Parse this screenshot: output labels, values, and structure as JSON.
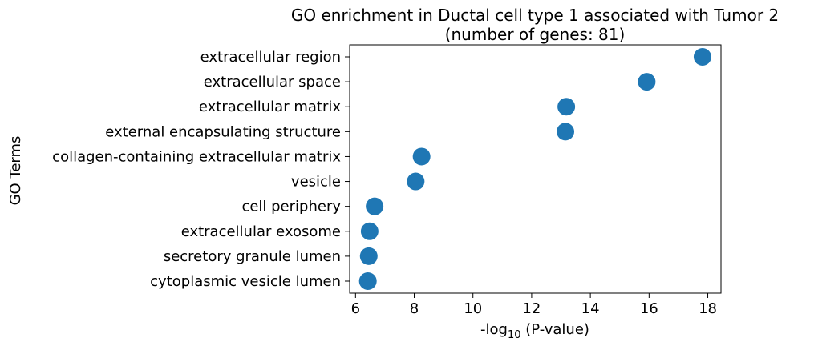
{
  "chart_data": {
    "type": "scatter",
    "title": "GO enrichment in Ductal cell type 1 associated with Tumor 2",
    "subtitle": "(number of genes: 81)",
    "xlabel_prefix": "-log",
    "xlabel_sub": "10",
    "xlabel_suffix": " (P-value)",
    "ylabel": "GO Terms",
    "xlim": [
      5.8,
      18.45
    ],
    "xticks": [
      6,
      8,
      10,
      12,
      14,
      16,
      18
    ],
    "grid": false,
    "marker_color": "#1f77b4",
    "points": [
      {
        "term": "extracellular region",
        "x": 17.82
      },
      {
        "term": "extracellular space",
        "x": 15.92
      },
      {
        "term": "extracellular matrix",
        "x": 13.18
      },
      {
        "term": "external encapsulating structure",
        "x": 13.15
      },
      {
        "term": "collagen-containing extracellular matrix",
        "x": 8.25
      },
      {
        "term": "vesicle",
        "x": 8.05
      },
      {
        "term": "cell periphery",
        "x": 6.65
      },
      {
        "term": "extracellular exosome",
        "x": 6.48
      },
      {
        "term": "secretory granule lumen",
        "x": 6.45
      },
      {
        "term": "cytoplasmic vesicle lumen",
        "x": 6.42
      }
    ]
  }
}
